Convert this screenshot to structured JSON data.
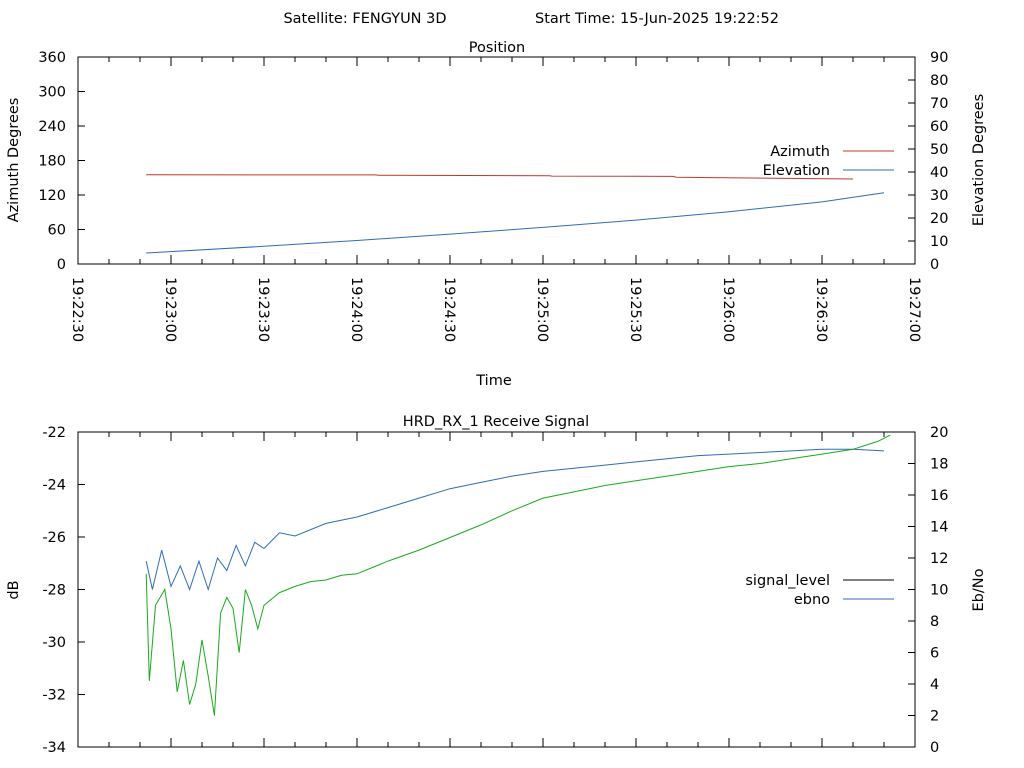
{
  "header": {
    "satellite": "Satellite: FENGYUN 3D",
    "start_time": "Start Time: 15-Jun-2025 19:22:52"
  },
  "chart_data": [
    {
      "type": "line",
      "title": "Position",
      "xlabel": "Time",
      "ylabel_left": "Azimuth Degrees",
      "ylabel_right": "Elevation Degrees",
      "x_ticks": [
        "19:22:30",
        "19:23:00",
        "19:23:30",
        "19:24:00",
        "19:24:30",
        "19:25:00",
        "19:25:30",
        "19:26:00",
        "19:26:30",
        "19:27:00"
      ],
      "x_range": [
        "19:22:30",
        "19:27:00"
      ],
      "y_left_range": [
        0,
        360
      ],
      "y_left_ticks": [
        0,
        60,
        120,
        180,
        240,
        300,
        360
      ],
      "y_right_range": [
        0,
        90
      ],
      "y_right_ticks": [
        0,
        10,
        20,
        30,
        40,
        50,
        60,
        70,
        80,
        90
      ],
      "grid": false,
      "legend_position": "right",
      "series": [
        {
          "name": "Azimuth",
          "axis": "left",
          "color": "#c0392b",
          "x": [
            "19:22:52",
            "19:24:06",
            "19:24:07",
            "19:25:02",
            "19:25:03",
            "19:25:42",
            "19:25:43",
            "19:26:40"
          ],
          "y": [
            155.2,
            155.0,
            154.2,
            153.6,
            152.8,
            152.3,
            151.0,
            147.8
          ]
        },
        {
          "name": "Elevation",
          "axis": "right",
          "color": "#2e6db4",
          "x": [
            "19:22:52",
            "19:23:30",
            "19:24:00",
            "19:24:30",
            "19:25:00",
            "19:25:30",
            "19:26:00",
            "19:26:30",
            "19:26:50"
          ],
          "y": [
            4.8,
            7.7,
            10.2,
            13.0,
            15.9,
            19.1,
            22.7,
            27.0,
            31.0
          ]
        }
      ]
    },
    {
      "type": "line",
      "title": "HRD_RX_1 Receive Signal",
      "ylabel_left": "dB",
      "ylabel_right": "Eb/No",
      "x_range": [
        "19:22:30",
        "19:27:00"
      ],
      "y_left_range": [
        -34,
        -22
      ],
      "y_left_ticks": [
        -34,
        -32,
        -30,
        -28,
        -26,
        -24,
        -22
      ],
      "y_right_range": [
        0,
        20
      ],
      "y_right_ticks": [
        0,
        2,
        4,
        6,
        8,
        10,
        12,
        14,
        16,
        18,
        20
      ],
      "grid": false,
      "legend_position": "right",
      "series": [
        {
          "name": "signal_level",
          "axis": "left",
          "color": "#000000",
          "x": [],
          "y": []
        },
        {
          "name": "ebno",
          "axis": "right",
          "color": "#2e6db4",
          "x": [
            "19:22:52",
            "19:22:54",
            "19:22:57",
            "19:23:00",
            "19:23:03",
            "19:23:06",
            "19:23:09",
            "19:23:12",
            "19:23:15",
            "19:23:18",
            "19:23:21",
            "19:23:24",
            "19:23:27",
            "19:23:30",
            "19:23:35",
            "19:23:40",
            "19:23:50",
            "19:24:00",
            "19:24:10",
            "19:24:20",
            "19:24:30",
            "19:24:40",
            "19:24:50",
            "19:25:00",
            "19:25:10",
            "19:25:20",
            "19:25:30",
            "19:25:40",
            "19:25:50",
            "19:26:00",
            "19:26:10",
            "19:26:20",
            "19:26:30",
            "19:26:40",
            "19:26:50"
          ],
          "y": [
            11.8,
            10.0,
            12.5,
            10.2,
            11.5,
            10.0,
            11.8,
            10.0,
            12.0,
            11.2,
            12.8,
            11.5,
            13.0,
            12.6,
            13.6,
            13.4,
            14.2,
            14.6,
            15.2,
            15.8,
            16.4,
            16.8,
            17.2,
            17.5,
            17.7,
            17.9,
            18.1,
            18.3,
            18.5,
            18.6,
            18.7,
            18.8,
            18.9,
            18.9,
            18.8
          ]
        },
        {
          "name": "",
          "axis": "right",
          "color": "#1aaa1a",
          "x": [
            "19:22:52",
            "19:22:53",
            "19:22:55",
            "19:22:58",
            "19:23:00",
            "19:23:02",
            "19:23:04",
            "19:23:06",
            "19:23:08",
            "19:23:10",
            "19:23:12",
            "19:23:14",
            "19:23:16",
            "19:23:18",
            "19:23:20",
            "19:23:22",
            "19:23:24",
            "19:23:26",
            "19:23:28",
            "19:23:30",
            "19:23:35",
            "19:23:40",
            "19:23:45",
            "19:23:50",
            "19:23:55",
            "19:24:00",
            "19:24:05",
            "19:24:10",
            "19:24:20",
            "19:24:30",
            "19:24:40",
            "19:24:50",
            "19:25:00",
            "19:25:10",
            "19:25:20",
            "19:25:30",
            "19:25:40",
            "19:25:50",
            "19:26:00",
            "19:26:10",
            "19:26:20",
            "19:26:30",
            "19:26:40",
            "19:26:48",
            "19:26:52"
          ],
          "y": [
            11.0,
            4.2,
            9.0,
            10.0,
            7.5,
            3.5,
            5.5,
            2.7,
            4.0,
            6.8,
            4.5,
            2.0,
            8.5,
            9.5,
            8.8,
            6.0,
            10.0,
            9.0,
            7.5,
            9.0,
            9.8,
            10.2,
            10.5,
            10.6,
            10.9,
            11.0,
            11.4,
            11.8,
            12.5,
            13.3,
            14.1,
            15.0,
            15.8,
            16.2,
            16.6,
            16.9,
            17.2,
            17.5,
            17.8,
            18.0,
            18.3,
            18.6,
            18.9,
            19.4,
            19.8
          ]
        }
      ]
    }
  ]
}
